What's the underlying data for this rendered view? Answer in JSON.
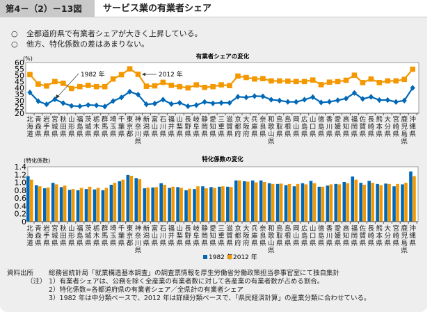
{
  "header": {
    "figure_number": "第4－（2）－13図",
    "title": "サービス業の有業者シェア"
  },
  "bullets": [
    "全都道府県で有業者シェアが大きく上昇している。",
    "他方、特化係数の差はあまりない。"
  ],
  "bullet_marker": "○",
  "colors": {
    "series_1982": "#0068b7",
    "series_2012": "#f39800"
  },
  "chart_data": [
    {
      "type": "line",
      "title": "有業者シェアの変化",
      "ylabel": "(%)",
      "ylim": [
        20,
        60
      ],
      "yticks": [
        20,
        25,
        30,
        35,
        40,
        45,
        50,
        55,
        60
      ],
      "grid": false,
      "categories": [
        "北海道",
        "青森県",
        "岩手県",
        "宮城県",
        "秋田県",
        "山形県",
        "福島県",
        "茨城県",
        "栃木県",
        "群馬県",
        "埼玉県",
        "千葉県",
        "東京都",
        "神奈川県",
        "新潟県",
        "富山県",
        "石川県",
        "福井県",
        "山梨県",
        "長野県",
        "岐阜県",
        "静岡県",
        "愛知県",
        "三重県",
        "滋賀県",
        "京都府",
        "大阪府",
        "兵庫県",
        "奈良県",
        "和歌山県",
        "鳥取県",
        "島根県",
        "岡山県",
        "広島県",
        "山口県",
        "徳島県",
        "香川県",
        "愛媛県",
        "高知県",
        "福岡県",
        "佐賀県",
        "長崎県",
        "熊本県",
        "大分県",
        "宮崎県",
        "鹿児島県",
        "沖縄県"
      ],
      "series": [
        {
          "name": "1982 年",
          "marker": "diamond",
          "values": [
            36.4,
            29.5,
            27.0,
            31.0,
            28.0,
            25.8,
            25.5,
            26.5,
            26.2,
            25.3,
            29.6,
            32.5,
            37.0,
            34.7,
            27.0,
            27.6,
            30.7,
            27.3,
            28.2,
            25.5,
            26.4,
            28.9,
            27.8,
            28.2,
            28.2,
            33.0,
            32.5,
            33.5,
            33.3,
            30.7,
            30.0,
            29.0,
            28.9,
            30.7,
            32.7,
            28.5,
            29.0,
            30.2,
            31.6,
            36.0,
            31.3,
            32.9,
            30.4,
            30.4,
            28.9,
            30.0,
            40.0
          ]
        },
        {
          "name": "2012 年",
          "marker": "square",
          "values": [
            50.5,
            43.0,
            41.5,
            45.0,
            43.6,
            39.5,
            41.0,
            42.0,
            41.0,
            41.0,
            47.0,
            50.4,
            55.0,
            50.7,
            41.3,
            41.6,
            44.4,
            42.0,
            41.0,
            40.0,
            42.4,
            40.4,
            41.0,
            42.4,
            41.8,
            49.3,
            48.2,
            47.0,
            47.3,
            45.5,
            45.5,
            45.3,
            45.0,
            45.0,
            46.2,
            42.5,
            44.5,
            45.0,
            46.0,
            50.0,
            44.2,
            47.0,
            44.2,
            45.5,
            45.5,
            46.7,
            54.7
          ]
        }
      ],
      "annotations": [
        "1982 年",
        "2012 年"
      ]
    },
    {
      "type": "bar",
      "title": "特化係数の変化",
      "ylabel": "(特化係数)",
      "ylim": [
        0,
        1.4
      ],
      "yticks": [
        "0",
        "0.2",
        "0.4",
        "0.6",
        "0.8",
        "1.0",
        "1.2",
        "1.4"
      ],
      "grid": false,
      "legend": "bottom-center",
      "categories": [
        "北海道",
        "青森県",
        "岩手県",
        "宮城県",
        "秋田県",
        "山形県",
        "福島県",
        "茨城県",
        "栃木県",
        "群馬県",
        "埼玉県",
        "千葉県",
        "東京都",
        "神奈川県",
        "新潟県",
        "富山県",
        "石川県",
        "福井県",
        "山梨県",
        "長野県",
        "岐阜県",
        "静岡県",
        "愛知県",
        "三重県",
        "滋賀県",
        "京都府",
        "大阪府",
        "兵庫県",
        "奈良県",
        "和歌山県",
        "鳥取県",
        "島根県",
        "岡山県",
        "広島県",
        "山口県",
        "徳島県",
        "香川県",
        "愛媛県",
        "高知県",
        "福岡県",
        "佐賀県",
        "長崎県",
        "熊本県",
        "大分県",
        "宮崎県",
        "鹿児島県",
        "沖縄県"
      ],
      "series": [
        {
          "name": "1982 年",
          "values": [
            1.16,
            0.93,
            0.85,
            0.99,
            0.88,
            0.81,
            0.8,
            0.83,
            0.82,
            0.8,
            0.94,
            1.03,
            1.19,
            1.11,
            0.85,
            0.87,
            0.98,
            0.86,
            0.88,
            0.8,
            0.83,
            0.9,
            0.88,
            0.89,
            0.89,
            1.05,
            1.03,
            1.05,
            1.05,
            0.98,
            0.96,
            0.93,
            0.9,
            0.98,
            1.04,
            0.89,
            0.92,
            0.96,
            1.01,
            1.15,
            0.99,
            1.04,
            0.96,
            0.97,
            0.9,
            0.95,
            1.28
          ]
        },
        {
          "name": "2012 年",
          "values": [
            1.07,
            0.9,
            0.87,
            0.95,
            0.92,
            0.83,
            0.86,
            0.89,
            0.86,
            0.86,
            0.99,
            1.07,
            1.17,
            1.08,
            0.87,
            0.88,
            0.94,
            0.89,
            0.86,
            0.84,
            0.9,
            0.85,
            0.86,
            0.9,
            0.88,
            1.05,
            1.02,
            1.0,
            1.01,
            0.96,
            0.97,
            0.96,
            0.96,
            0.95,
            0.98,
            0.89,
            0.95,
            0.95,
            0.98,
            1.07,
            0.94,
            0.99,
            0.93,
            0.96,
            0.96,
            0.99,
            1.16
          ]
        }
      ]
    }
  ],
  "notes": {
    "source_label": "資料出所",
    "source_text": "総務省統計局「就業構造基本調査」の調査票情報を厚生労働省労働政策担当参事官室にて独自集計",
    "notes_label": "（注）",
    "items": [
      "1）有業者シェアは、公務を除く全産業の有業者数に対して各産業の有業者数が占める割合。",
      "2）特化係数=各都道府県の有業者シェア／全県計の有業者シェア",
      "3）1982 年は中分類ベースで、2012 年は詳細分類ベースで、「県民経済計算」の産業分類に合わせている。"
    ]
  }
}
